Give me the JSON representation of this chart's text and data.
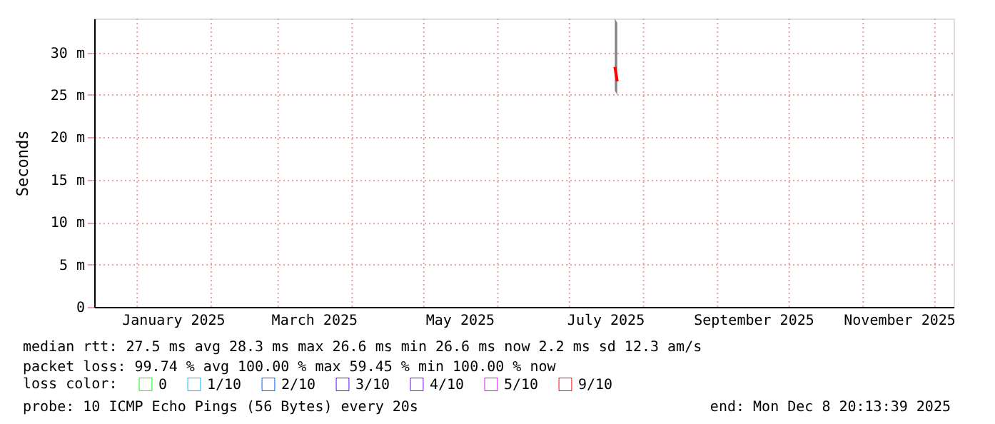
{
  "chart_data": {
    "type": "line",
    "ylabel": "Seconds",
    "legend_title": "loss color:",
    "legend": "bottom",
    "xlim": [
      "2024-12-14",
      "2025-12-08T20:13"
    ],
    "xticks": [
      {
        "value": "2025-01-01",
        "label": null
      },
      {
        "value": "2025-01-16",
        "label": "January 2025"
      },
      {
        "value": "2025-02-01",
        "label": null
      },
      {
        "value": "2025-03-01",
        "label": null
      },
      {
        "value": "2025-03-16",
        "label": "March 2025"
      },
      {
        "value": "2025-04-01",
        "label": null
      },
      {
        "value": "2025-05-01",
        "label": null
      },
      {
        "value": "2025-05-16",
        "label": "May 2025"
      },
      {
        "value": "2025-06-01",
        "label": null
      },
      {
        "value": "2025-07-01",
        "label": null
      },
      {
        "value": "2025-07-16",
        "label": "July 2025"
      },
      {
        "value": "2025-08-01",
        "label": null
      },
      {
        "value": "2025-09-01",
        "label": null
      },
      {
        "value": "2025-09-16",
        "label": "September 2025"
      },
      {
        "value": "2025-10-01",
        "label": null
      },
      {
        "value": "2025-11-01",
        "label": null
      },
      {
        "value": "2025-11-16",
        "label": "November 2025"
      },
      {
        "value": "2025-12-01",
        "label": null
      }
    ],
    "ylim": [
      0,
      34
    ],
    "yticks": [
      0,
      {
        "value": 5,
        "label": "5 m"
      },
      {
        "value": 10,
        "label": "10 m"
      },
      {
        "value": 15,
        "label": "15 m"
      },
      {
        "value": 20,
        "label": "20 m"
      },
      {
        "value": 25,
        "label": "25 m"
      },
      {
        "value": 30,
        "label": "30 m"
      }
    ],
    "grid": true,
    "series": [
      {
        "name": "0",
        "color": "#00ff00"
      },
      {
        "name": "1/10",
        "color": "#00b8ff"
      },
      {
        "name": "2/10",
        "color": "#0059ff"
      },
      {
        "name": "3/10",
        "color": "#5e00ff"
      },
      {
        "name": "4/10",
        "color": "#7e00ff"
      },
      {
        "name": "5/10",
        "color": "#dd00ff"
      },
      {
        "name": "9/10",
        "color": "#ff0000",
        "x": [
          "2025-07-20",
          "2025-07-21"
        ],
        "values": [
          28.3,
          26.6
        ],
        "lower": [
          25.5,
          25
        ],
        "upper": [
          34,
          33.5
        ]
      }
    ],
    "annotations": [
      "median rtt:  27.5 ms avg  28.3 ms max  26.6 ms min  26.6 ms now  2.2 ms sd  12.3   am/s",
      "packet loss: 99.74 % avg  100.00 % max  59.45 % min  100.00 % now",
      "probe:       10 ICMP Echo Pings (56 Bytes) every 20s",
      "end: Mon Dec  8 20:13:39 2025"
    ]
  }
}
